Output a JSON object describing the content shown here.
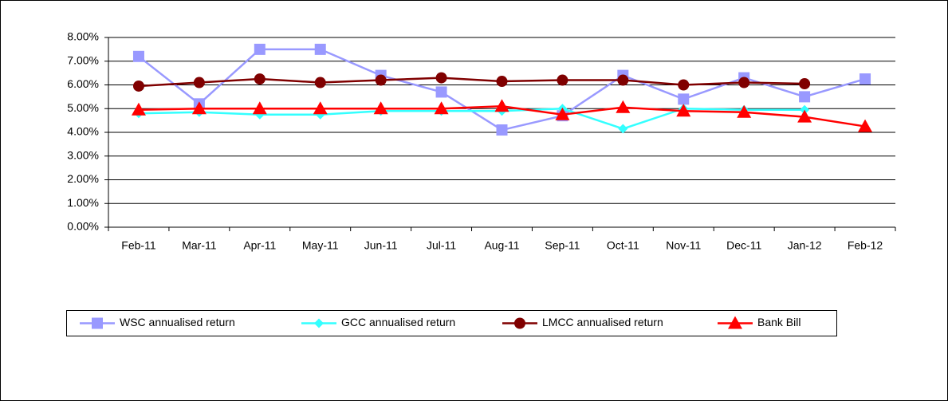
{
  "chart_data": {
    "type": "line",
    "categories": [
      "Feb-11",
      "Mar-11",
      "Apr-11",
      "May-11",
      "Jun-11",
      "Jul-11",
      "Aug-11",
      "Sep-11",
      "Oct-11",
      "Nov-11",
      "Dec-11",
      "Jan-12",
      "Feb-12"
    ],
    "series": [
      {
        "name": "WSC  annualised return",
        "color": "#9999ff",
        "marker": "square",
        "values": [
          7.2,
          5.2,
          7.5,
          7.5,
          6.4,
          5.7,
          4.1,
          4.7,
          6.4,
          5.4,
          6.3,
          5.5,
          6.25
        ]
      },
      {
        "name": "GCC annualised return",
        "color": "#33ffff",
        "marker": "diamond",
        "values": [
          4.8,
          4.85,
          4.75,
          4.75,
          4.9,
          4.9,
          4.9,
          5.0,
          4.15,
          5.0,
          4.95,
          4.95,
          null
        ]
      },
      {
        "name": "LMCC annualised return",
        "color": "#800000",
        "marker": "circle",
        "values": [
          5.95,
          6.1,
          6.25,
          6.1,
          6.2,
          6.3,
          6.15,
          6.2,
          6.2,
          6.0,
          6.1,
          6.05,
          null
        ]
      },
      {
        "name": "Bank Bill",
        "color": "#ff0000",
        "marker": "triangle",
        "values": [
          4.95,
          5.0,
          5.0,
          5.0,
          5.0,
          5.0,
          5.1,
          4.75,
          5.05,
          4.9,
          4.85,
          4.65,
          4.25
        ]
      }
    ],
    "ylim": [
      0,
      8
    ],
    "yticks": [
      {
        "value": 0,
        "label": "0.00%"
      },
      {
        "value": 1,
        "label": "1.00%"
      },
      {
        "value": 2,
        "label": "2.00%"
      },
      {
        "value": 3,
        "label": "3.00%"
      },
      {
        "value": 4,
        "label": "4.00%"
      },
      {
        "value": 5,
        "label": "5.00%"
      },
      {
        "value": 6,
        "label": "6.00%"
      },
      {
        "value": 7,
        "label": "7.00%"
      },
      {
        "value": 8,
        "label": "8.00%"
      }
    ],
    "grid": true,
    "legend": "bottom"
  }
}
